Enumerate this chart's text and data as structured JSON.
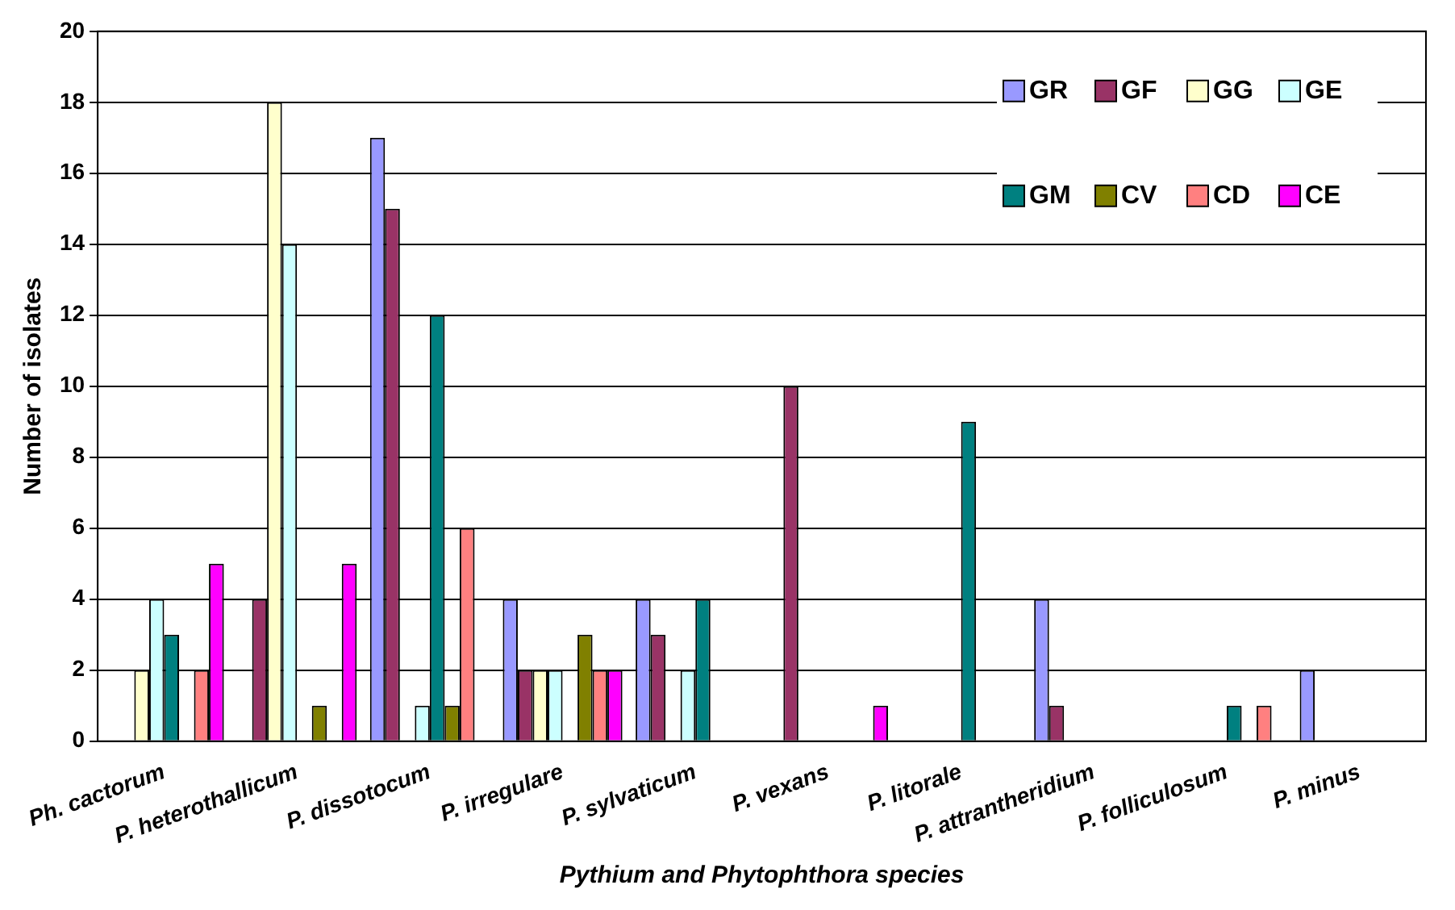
{
  "chart_data": {
    "type": "bar",
    "xlabel": "Pythium and Phytophthora species",
    "ylabel": "Number of isolates",
    "categories": [
      "Ph. cactorum",
      "P. heterothallicum",
      "P. dissotocum",
      "P. irregulare",
      "P. sylvaticum",
      "P. vexans",
      "P. litorale",
      "P. attrantheridium",
      "P. folliculosum",
      "P. minus"
    ],
    "series": [
      {
        "name": "GR",
        "color": "#9999ff",
        "values": [
          0,
          0,
          17,
          4,
          4,
          0,
          0,
          4,
          0,
          2
        ]
      },
      {
        "name": "GF",
        "color": "#993366",
        "values": [
          0,
          4,
          15,
          2,
          3,
          10,
          0,
          1,
          0,
          0
        ]
      },
      {
        "name": "GG",
        "color": "#ffffcc",
        "values": [
          2,
          18,
          0,
          2,
          0,
          0,
          0,
          0,
          0,
          0
        ]
      },
      {
        "name": "GE",
        "color": "#ccffff",
        "values": [
          4,
          14,
          1,
          2,
          2,
          0,
          0,
          0,
          0,
          0
        ]
      },
      {
        "name": "GM",
        "color": "#008080",
        "values": [
          3,
          0,
          12,
          0,
          4,
          0,
          9,
          0,
          1,
          0
        ]
      },
      {
        "name": "CV",
        "color": "#808000",
        "values": [
          0,
          1,
          1,
          3,
          0,
          0,
          0,
          0,
          0,
          0
        ]
      },
      {
        "name": "CD",
        "color": "#ff8080",
        "values": [
          2,
          0,
          6,
          2,
          0,
          0,
          0,
          0,
          1,
          0
        ]
      },
      {
        "name": "CE",
        "color": "#ff00ff",
        "values": [
          5,
          5,
          0,
          2,
          0,
          1,
          0,
          0,
          0,
          0
        ]
      }
    ],
    "ylim": [
      0,
      20
    ],
    "yticks": [
      0,
      2,
      4,
      6,
      8,
      10,
      12,
      14,
      16,
      18,
      20
    ],
    "grid": "y",
    "legend": "top right"
  }
}
